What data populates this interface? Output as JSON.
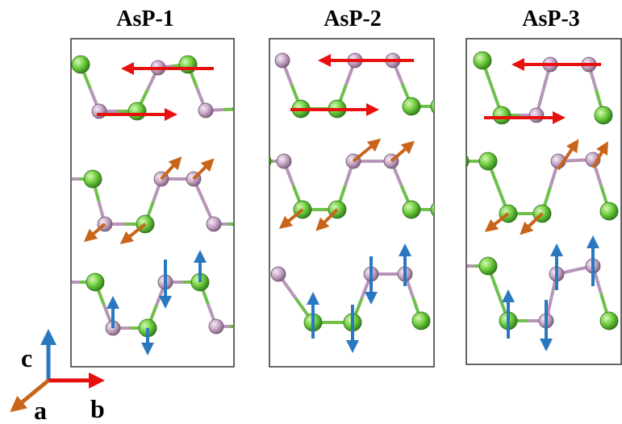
{
  "panels": [
    {
      "title": "AsP-1"
    },
    {
      "title": "AsP-2"
    },
    {
      "title": "AsP-3"
    }
  ],
  "axes": {
    "labels": [
      "c",
      "a",
      "b"
    ]
  }
}
